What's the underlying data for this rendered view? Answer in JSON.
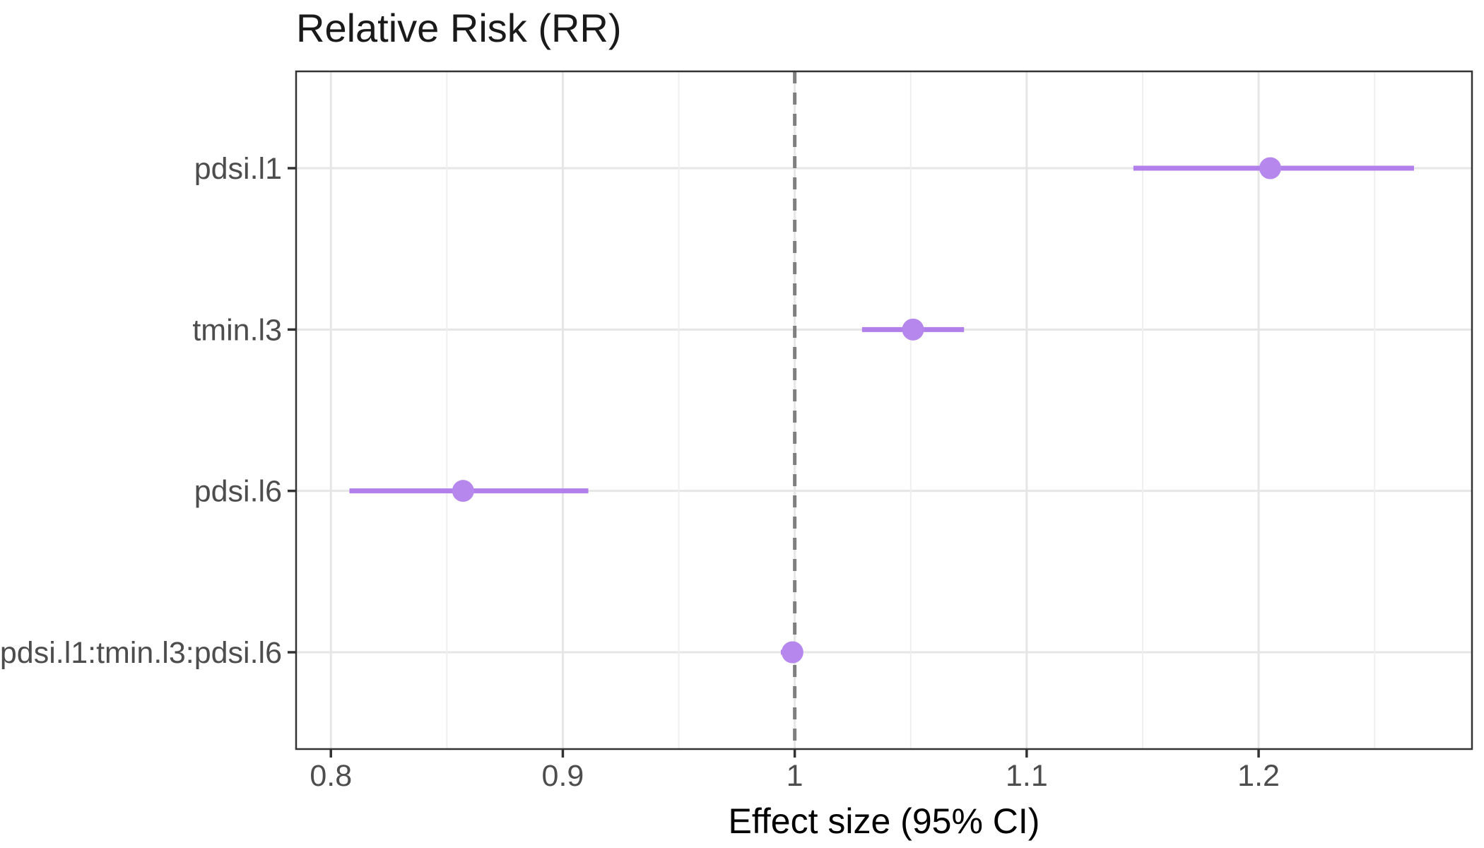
{
  "chart_data": {
    "type": "scatter",
    "subtype": "forest-plot-pointrange",
    "title": "Relative Risk (RR)",
    "xlabel": "Effect size (95% CI)",
    "ylabel": "",
    "xlim": [
      0.785,
      1.292
    ],
    "x_ticks": [
      {
        "value": 0.8,
        "label": "0.8"
      },
      {
        "value": 0.9,
        "label": "0.9"
      },
      {
        "value": 1.0,
        "label": "1"
      },
      {
        "value": 1.1,
        "label": "1.1"
      },
      {
        "value": 1.2,
        "label": "1.2"
      }
    ],
    "x_minor_gridlines": [
      0.85,
      0.95,
      1.05,
      1.15,
      1.25
    ],
    "reference_line_x": 1.0,
    "reference_line_style": "dashed",
    "grid": true,
    "legend_position": "none",
    "rows": [
      {
        "term": "pdsi.l1",
        "estimate": 1.205,
        "ci_low": 1.146,
        "ci_high": 1.267
      },
      {
        "term": "tmin.l3",
        "estimate": 1.051,
        "ci_low": 1.029,
        "ci_high": 1.073
      },
      {
        "term": "pdsi.l6",
        "estimate": 0.857,
        "ci_low": 0.808,
        "ci_high": 0.911
      },
      {
        "term": "pdsi.l1:tmin.l3:pdsi.l6",
        "estimate": 0.999,
        "ci_low": 0.994,
        "ci_high": 1.003
      }
    ],
    "colors": {
      "point": "#B687ED",
      "ci_line": "#B180EB",
      "reference_line": "#7F7F7F",
      "grid_major": "#E6E6E6",
      "grid_minor": "#EFEFEF",
      "panel_border": "#333333",
      "tick_mark": "#333333",
      "tick_text": "#4D4D4D",
      "title_text": "#1A1A1A",
      "axis_title_text": "#000000",
      "background": "#FFFFFF"
    }
  }
}
